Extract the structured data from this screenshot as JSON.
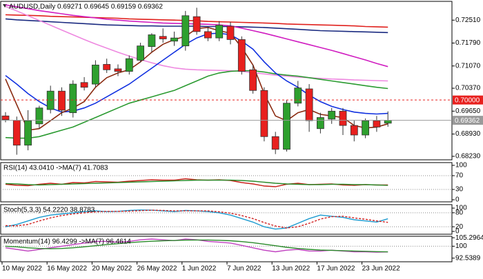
{
  "chart_data": [
    {
      "type": "candlestick",
      "title": "AUDUSD,Daily  0.69271 0.69645 0.69159 0.69362",
      "categories": [
        "10 May 2022",
        null,
        null,
        null,
        "16 May 2022",
        null,
        null,
        null,
        "20 May 2022",
        null,
        null,
        null,
        "26 May 2022",
        null,
        null,
        null,
        "1 Jun 2022",
        null,
        null,
        null,
        "7 Jun 2022",
        null,
        null,
        null,
        "13 Jun 2022",
        null,
        null,
        null,
        "17 Jun 2022",
        null,
        null,
        null,
        "23 Jun 2022",
        null,
        null
      ],
      "open": [
        0.695,
        0.6936,
        0.6858,
        0.6925,
        0.697,
        0.7028,
        0.696,
        0.7055,
        0.705,
        0.7112,
        0.7098,
        0.709,
        0.7125,
        0.7168,
        0.72,
        0.7185,
        0.717,
        0.7262,
        0.7215,
        0.7195,
        0.7232,
        0.719,
        0.7095,
        0.703,
        0.6885,
        0.6845,
        0.699,
        0.7035,
        0.691,
        0.694,
        0.6965,
        0.692,
        0.689,
        0.6935,
        0.69271
      ],
      "high": [
        0.6962,
        0.6948,
        0.6968,
        0.6982,
        0.7045,
        0.704,
        0.7062,
        0.7072,
        0.7125,
        0.713,
        0.7112,
        0.714,
        0.718,
        0.721,
        0.7225,
        0.7215,
        0.728,
        0.729,
        0.723,
        0.7248,
        0.7245,
        0.72,
        0.711,
        0.704,
        0.69,
        0.7,
        0.706,
        0.705,
        0.696,
        0.6975,
        0.6975,
        0.6935,
        0.6942,
        0.695,
        0.69645
      ],
      "low": [
        0.693,
        0.6828,
        0.6842,
        0.691,
        0.6958,
        0.695,
        0.6945,
        0.703,
        0.704,
        0.7085,
        0.7075,
        0.708,
        0.7118,
        0.715,
        0.718,
        0.717,
        0.7155,
        0.7205,
        0.7185,
        0.7185,
        0.7175,
        0.708,
        0.702,
        0.687,
        0.683,
        0.6838,
        0.698,
        0.69,
        0.6895,
        0.6925,
        0.689,
        0.687,
        0.688,
        0.69,
        0.69159
      ],
      "close": [
        0.6938,
        0.6858,
        0.6935,
        0.6975,
        0.7028,
        0.6968,
        0.705,
        0.704,
        0.711,
        0.7095,
        0.709,
        0.713,
        0.717,
        0.7205,
        0.7192,
        0.7195,
        0.7265,
        0.7215,
        0.7195,
        0.7235,
        0.719,
        0.709,
        0.703,
        0.6885,
        0.6845,
        0.699,
        0.7038,
        0.6935,
        0.6945,
        0.6965,
        0.692,
        0.689,
        0.6935,
        0.6915,
        0.69362
      ],
      "up_color": "#2ea02e",
      "down_color": "#e8201e",
      "overlays": [
        {
          "color": "#e0201c",
          "values": [
            0.7268,
            0.7267,
            0.7266,
            0.7265,
            0.7263,
            0.7262,
            0.7261,
            0.726,
            0.7259,
            0.7258,
            0.7257,
            0.7255,
            0.7254,
            0.7253,
            0.7252,
            0.7251,
            0.725,
            0.7249,
            0.7247,
            0.7246,
            0.7245,
            0.7244,
            0.7243,
            0.7242,
            0.7241,
            0.7239,
            0.7238,
            0.7237,
            0.7236,
            0.7235,
            0.7234,
            0.7233,
            0.7231,
            0.723,
            0.7229
          ]
        },
        {
          "color": "#1a2a80",
          "values": [
            0.7255,
            0.7252,
            0.725,
            0.7248,
            0.7246,
            0.7244,
            0.7242,
            0.724,
            0.7238,
            0.7236,
            0.7235,
            0.7234,
            0.7233,
            0.7233,
            0.7232,
            0.7232,
            0.7232,
            0.7232,
            0.7231,
            0.7231,
            0.7231,
            0.723,
            0.7229,
            0.7228,
            0.7226,
            0.7224,
            0.7222,
            0.722,
            0.7218,
            0.7217,
            0.7216,
            0.7215,
            0.7214,
            0.7213,
            0.7212
          ]
        },
        {
          "color": "#d01cc0",
          "values": [
            0.7299,
            0.7293,
            0.7287,
            0.7281,
            0.7276,
            0.7271,
            0.7266,
            0.7262,
            0.7258,
            0.7254,
            0.7251,
            0.7248,
            0.7246,
            0.7244,
            0.7242,
            0.7241,
            0.724,
            0.7239,
            0.7238,
            0.7236,
            0.7233,
            0.7226,
            0.7218,
            0.721,
            0.7201,
            0.7192,
            0.7183,
            0.7174,
            0.7165,
            0.7156,
            0.7146,
            0.7136,
            0.7126,
            0.7115,
            0.7105
          ]
        },
        {
          "color": "#ee88e0",
          "values": [
            0.7294,
            0.728,
            0.7265,
            0.725,
            0.7235,
            0.722,
            0.7205,
            0.719,
            0.7176,
            0.7163,
            0.715,
            0.7138,
            0.7127,
            0.7117,
            0.7108,
            0.7101,
            0.7097,
            0.7095,
            0.7094,
            0.7093,
            0.7092,
            0.709,
            0.7086,
            0.7082,
            0.7078,
            0.7075,
            0.7072,
            0.707,
            0.7068,
            0.7066,
            0.7065,
            0.7063,
            0.7062,
            0.7061,
            0.706
          ]
        },
        {
          "color": "#2a9a30",
          "values": [
            0.6882,
            0.688,
            0.688,
            0.6885,
            0.6895,
            0.6905,
            0.6915,
            0.693,
            0.6945,
            0.696,
            0.6975,
            0.699,
            0.7,
            0.701,
            0.702,
            0.703,
            0.7045,
            0.706,
            0.7075,
            0.7085,
            0.709,
            0.7092,
            0.7092,
            0.7088,
            0.7082,
            0.7078,
            0.7075,
            0.707,
            0.7065,
            0.706,
            0.7055,
            0.705,
            0.7045,
            0.704,
            0.7036
          ]
        },
        {
          "color": "#1030e0",
          "values": [
            0.7077,
            0.705,
            0.702,
            0.6995,
            0.6975,
            0.6962,
            0.6965,
            0.6975,
            0.699,
            0.701,
            0.703,
            0.705,
            0.7075,
            0.71,
            0.7125,
            0.715,
            0.7175,
            0.7195,
            0.7208,
            0.721,
            0.7205,
            0.7185,
            0.716,
            0.712,
            0.7085,
            0.706,
            0.704,
            0.7015,
            0.6995,
            0.698,
            0.697,
            0.6962,
            0.6958,
            0.6956,
            0.6958
          ]
        },
        {
          "color": "#8a2a10",
          "values": [
            0.7066,
            0.6985,
            0.6905,
            0.691,
            0.6935,
            0.696,
            0.6975,
            0.6995,
            0.704,
            0.707,
            0.7085,
            0.7095,
            0.712,
            0.715,
            0.7175,
            0.719,
            0.72,
            0.7225,
            0.7228,
            0.7218,
            0.721,
            0.7165,
            0.711,
            0.702,
            0.695,
            0.6935,
            0.696,
            0.697,
            0.6955,
            0.695,
            0.6945,
            0.692,
            0.6912,
            0.6915,
            0.6925
          ]
        }
      ],
      "levels": [
        {
          "value": 0.7,
          "label": "0.70000",
          "color": "#e8201e",
          "dash": true
        },
        {
          "value": 0.69362,
          "label": "0.69362",
          "color": "#9a9a9a",
          "dash": false
        }
      ],
      "ylim": [
        0.6812,
        0.731
      ],
      "yticks": [
        {
          "value": 0.7251,
          "label": "0.72510"
        },
        {
          "value": 0.7179,
          "label": "0.71790"
        },
        {
          "value": 0.7107,
          "label": "0.71070"
        },
        {
          "value": 0.7037,
          "label": "0.70370"
        },
        {
          "value": 0.6965,
          "label": "0.69650"
        },
        {
          "value": 0.6893,
          "label": "0.68930"
        },
        {
          "value": 0.6823,
          "label": "0.68230"
        }
      ]
    },
    {
      "type": "line",
      "title": "RSI(14) 43.0410 ->MA(7) 41.7083",
      "series": [
        {
          "color": "#c8201a",
          "dash": false,
          "values": [
            45,
            42,
            41,
            45,
            48,
            45,
            50,
            49,
            53,
            52,
            51,
            54,
            56,
            58,
            57,
            57,
            61,
            58,
            57,
            58,
            56,
            50,
            46,
            40,
            38,
            45,
            48,
            44,
            45,
            46,
            43,
            42,
            44,
            43,
            43.041
          ]
        },
        {
          "color": "#2a8a2a",
          "dash": false,
          "values": [
            47,
            46,
            44,
            43,
            44,
            45,
            46,
            47,
            48,
            49,
            50,
            51,
            52,
            53,
            54,
            55,
            56,
            57,
            57,
            57,
            57,
            56,
            54,
            51,
            48,
            46,
            45,
            44,
            44,
            45,
            45,
            44,
            44,
            43,
            41.7083
          ]
        }
      ],
      "levels": [
        70,
        30
      ],
      "ylim": [
        -6,
        108
      ],
      "yticks": [
        100,
        70,
        30,
        0
      ]
    },
    {
      "type": "line",
      "title": "Stoch(5,3,3) 54.2220 38.8783",
      "series": [
        {
          "color": "#1a9ad0",
          "dash": false,
          "values": [
            20,
            30,
            45,
            60,
            70,
            75,
            80,
            85,
            88,
            85,
            86,
            90,
            92,
            91,
            88,
            85,
            90,
            88,
            85,
            80,
            70,
            55,
            40,
            20,
            10,
            15,
            35,
            55,
            70,
            65,
            60,
            50,
            45,
            40,
            54.222
          ]
        },
        {
          "color": "#d02020",
          "dash": true,
          "values": [
            25,
            24,
            30,
            45,
            58,
            68,
            75,
            80,
            84,
            86,
            86,
            87,
            89,
            91,
            90,
            88,
            88,
            88,
            88,
            84,
            78,
            68,
            55,
            38,
            23,
            15,
            20,
            35,
            53,
            63,
            65,
            58,
            52,
            45,
            38.8783
          ]
        }
      ],
      "levels": [
        80,
        20
      ],
      "ylim": [
        -12,
        115
      ],
      "yticks": [
        100,
        80,
        20,
        0
      ]
    },
    {
      "type": "line",
      "title": "Momentum(14) 96.4299 ->MA(7) 96.4614",
      "series": [
        {
          "color": "#c040c0",
          "dash": false,
          "values": [
            99,
            98,
            97,
            98,
            99,
            100,
            101,
            102,
            103,
            103,
            102.5,
            103,
            104,
            104.5,
            104,
            103.5,
            104.5,
            104,
            103,
            102.5,
            102,
            100.5,
            99,
            97.5,
            96.5,
            97.5,
            98,
            97,
            97,
            97.5,
            97,
            96.5,
            96.5,
            96.3,
            96.4299
          ]
        },
        {
          "color": "#2a8a2a",
          "dash": false,
          "values": [
            100,
            99.6,
            99,
            98.6,
            98.4,
            98.6,
            99,
            99.6,
            100.3,
            101,
            101.6,
            102.2,
            102.7,
            103.1,
            103.4,
            103.6,
            103.8,
            103.9,
            103.9,
            103.7,
            103.4,
            102.9,
            102.2,
            101.3,
            100.3,
            99.3,
            98.6,
            98,
            97.6,
            97.4,
            97.2,
            97,
            96.8,
            96.6,
            96.4614
          ]
        }
      ],
      "levels": [
        100
      ],
      "ylim": [
        90.26,
        106.21
      ],
      "yticks": [
        105.2964,
        100,
        92.5389
      ]
    }
  ]
}
